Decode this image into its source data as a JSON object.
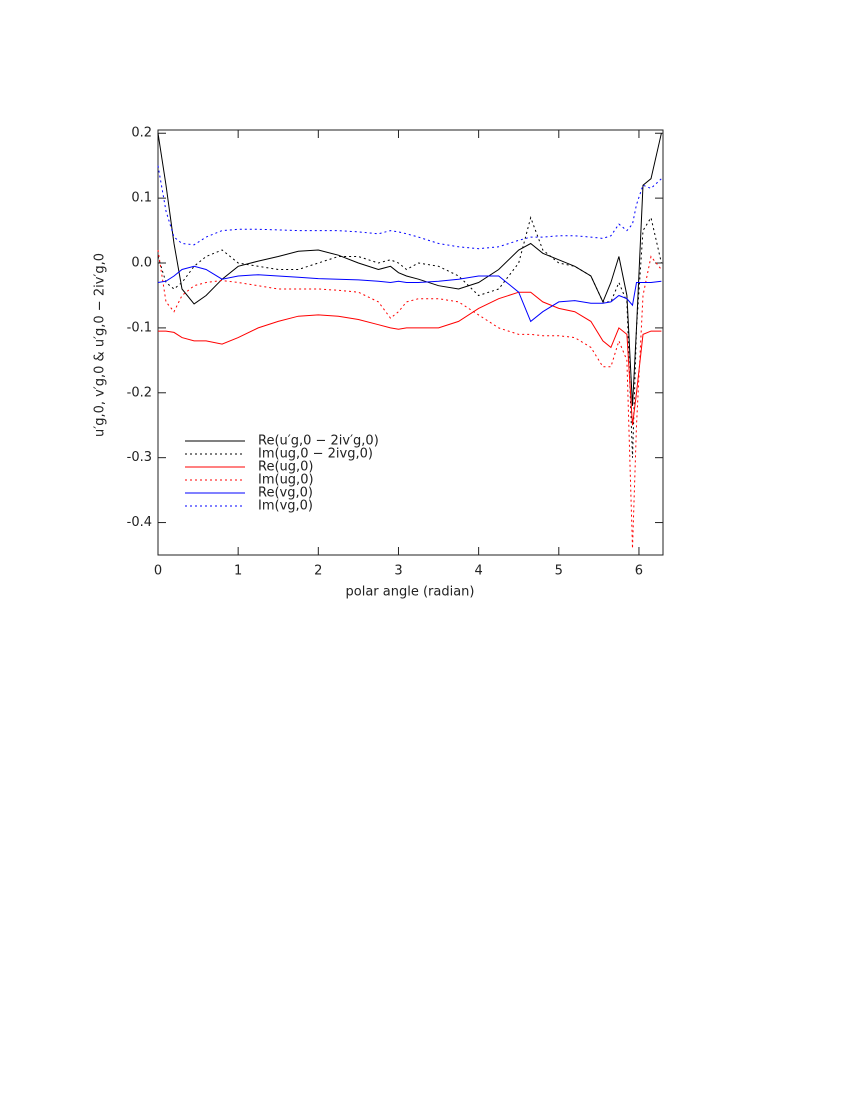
{
  "chart_data": {
    "type": "line",
    "xlabel": "polar angle (radian)",
    "ylabel": "u′g,0, v′g,0 & u′g,0 − 2iv′g,0",
    "x": [
      0,
      0.1,
      0.2,
      0.3,
      0.45,
      0.6,
      0.8,
      1.0,
      1.25,
      1.5,
      1.75,
      2.0,
      2.25,
      2.5,
      2.75,
      2.9,
      3.0,
      3.1,
      3.25,
      3.5,
      3.75,
      4.0,
      4.25,
      4.5,
      4.65,
      4.8,
      5.0,
      5.2,
      5.4,
      5.55,
      5.65,
      5.75,
      5.85,
      5.92,
      5.97,
      6.05,
      6.15,
      6.28
    ],
    "series": [
      {
        "name": "Re(u′g,0 − 2iv′g,0)",
        "color": "#000000",
        "style": "solid",
        "values": [
          0.2,
          0.12,
          0.03,
          -0.04,
          -0.063,
          -0.05,
          -0.025,
          -0.005,
          0.003,
          0.01,
          0.018,
          0.02,
          0.012,
          0.0,
          -0.01,
          -0.005,
          -0.015,
          -0.02,
          -0.025,
          -0.035,
          -0.04,
          -0.03,
          -0.01,
          0.02,
          0.03,
          0.015,
          0.005,
          -0.005,
          -0.02,
          -0.06,
          -0.03,
          0.01,
          -0.05,
          -0.22,
          -0.1,
          0.12,
          0.13,
          0.2
        ]
      },
      {
        "name": "Im(ug,0 − 2ivg,0)",
        "color": "#000000",
        "style": "dotted",
        "values": [
          0.01,
          -0.03,
          -0.04,
          -0.03,
          -0.005,
          0.01,
          0.02,
          0.0,
          -0.005,
          -0.01,
          -0.01,
          0.0,
          0.01,
          0.01,
          0.0,
          0.005,
          0.0,
          -0.01,
          0.0,
          -0.005,
          -0.02,
          -0.05,
          -0.04,
          0.0,
          0.07,
          0.02,
          0.0,
          -0.005,
          -0.02,
          -0.06,
          -0.06,
          -0.03,
          -0.06,
          -0.3,
          -0.1,
          0.05,
          0.07,
          0.0
        ]
      },
      {
        "name": "Re(ug,0)",
        "color": "#ff0000",
        "style": "solid",
        "values": [
          -0.105,
          -0.105,
          -0.107,
          -0.115,
          -0.12,
          -0.12,
          -0.125,
          -0.115,
          -0.1,
          -0.09,
          -0.082,
          -0.08,
          -0.082,
          -0.087,
          -0.095,
          -0.1,
          -0.102,
          -0.1,
          -0.1,
          -0.1,
          -0.09,
          -0.07,
          -0.055,
          -0.045,
          -0.045,
          -0.06,
          -0.07,
          -0.075,
          -0.09,
          -0.12,
          -0.13,
          -0.1,
          -0.11,
          -0.25,
          -0.2,
          -0.11,
          -0.105,
          -0.105
        ]
      },
      {
        "name": "Im(ug,0)",
        "color": "#ff0000",
        "style": "dotted",
        "values": [
          0.02,
          -0.06,
          -0.075,
          -0.05,
          -0.035,
          -0.03,
          -0.027,
          -0.03,
          -0.035,
          -0.04,
          -0.04,
          -0.04,
          -0.042,
          -0.045,
          -0.06,
          -0.085,
          -0.075,
          -0.06,
          -0.055,
          -0.055,
          -0.06,
          -0.08,
          -0.1,
          -0.11,
          -0.11,
          -0.112,
          -0.112,
          -0.115,
          -0.13,
          -0.16,
          -0.16,
          -0.12,
          -0.15,
          -0.44,
          -0.25,
          -0.05,
          0.01,
          -0.01
        ]
      },
      {
        "name": "Re(vg,0)",
        "color": "#0000ff",
        "style": "solid",
        "values": [
          -0.03,
          -0.028,
          -0.02,
          -0.01,
          -0.005,
          -0.01,
          -0.025,
          -0.02,
          -0.018,
          -0.02,
          -0.022,
          -0.024,
          -0.025,
          -0.026,
          -0.028,
          -0.03,
          -0.028,
          -0.03,
          -0.03,
          -0.028,
          -0.025,
          -0.02,
          -0.02,
          -0.045,
          -0.09,
          -0.075,
          -0.06,
          -0.058,
          -0.062,
          -0.062,
          -0.06,
          -0.05,
          -0.055,
          -0.065,
          -0.03,
          -0.03,
          -0.03,
          -0.028
        ]
      },
      {
        "name": "Im(vg,0)",
        "color": "#0000ff",
        "style": "dotted",
        "values": [
          0.15,
          0.08,
          0.04,
          0.03,
          0.028,
          0.04,
          0.05,
          0.052,
          0.052,
          0.051,
          0.05,
          0.05,
          0.05,
          0.048,
          0.045,
          0.05,
          0.048,
          0.045,
          0.04,
          0.03,
          0.025,
          0.022,
          0.025,
          0.035,
          0.04,
          0.04,
          0.042,
          0.042,
          0.04,
          0.038,
          0.042,
          0.06,
          0.05,
          0.06,
          0.09,
          0.12,
          0.115,
          0.13
        ]
      }
    ],
    "xlim": [
      0,
      6.3
    ],
    "xticks": [
      0,
      1,
      2,
      3,
      4,
      5,
      6
    ],
    "ylim": [
      -0.45,
      0.205
    ],
    "yticks": [
      -0.4,
      -0.3,
      -0.2,
      -0.1,
      {
        "value": 0,
        "label": "0.0"
      },
      0.1,
      0.2
    ],
    "legend": "lower left"
  }
}
